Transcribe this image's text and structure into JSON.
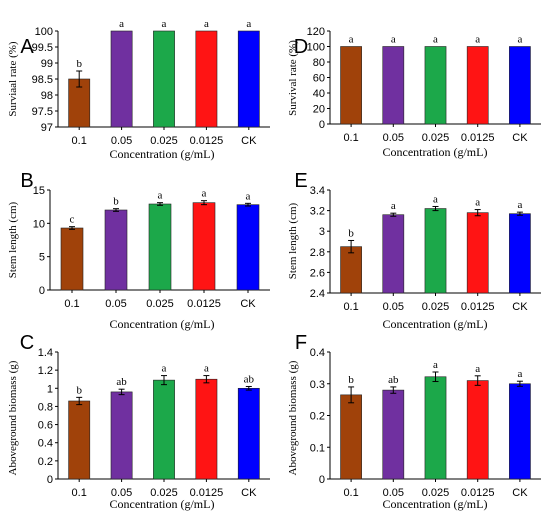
{
  "colors": [
    "#a0420a",
    "#7030a0",
    "#1ca84a",
    "#ff1414",
    "#0000ff"
  ],
  "chart_data": [
    {
      "panel": "A",
      "type": "bar",
      "categories": [
        "0.1",
        "0.05",
        "0.025",
        "0.0125",
        "CK"
      ],
      "values": [
        98.5,
        100,
        100,
        100,
        100
      ],
      "errors": [
        0.25,
        0,
        0,
        0,
        0
      ],
      "labels": [
        "b",
        "a",
        "a",
        "a",
        "a"
      ],
      "xlabel": "Concentration (g/mL)",
      "ylabel": "Surviaal rate (%)",
      "ylim": [
        97,
        100
      ],
      "yticks": [
        97,
        97.5,
        98,
        98.5,
        99,
        99.5,
        100
      ],
      "ytick_labels": [
        "97",
        "97.5",
        "98",
        "98.5",
        "99",
        "99.5",
        "100"
      ]
    },
    {
      "panel": "D",
      "type": "bar",
      "categories": [
        "0.1",
        "0.05",
        "0.025",
        "0.0125",
        "CK"
      ],
      "values": [
        100,
        100,
        100,
        100,
        100
      ],
      "errors": [
        0,
        0,
        0,
        0,
        0
      ],
      "labels": [
        "a",
        "a",
        "a",
        "a",
        "a"
      ],
      "xlabel": "Concentration (g/mL)",
      "ylabel": "Survival rate (%)",
      "ylim": [
        0,
        120
      ],
      "yticks": [
        0,
        20,
        40,
        60,
        80,
        100,
        120
      ],
      "ytick_labels": [
        "0",
        "20",
        "40",
        "60",
        "80",
        "100",
        "120"
      ]
    },
    {
      "panel": "B",
      "type": "bar",
      "categories": [
        "0.1",
        "0.05",
        "0.025",
        "0.0125",
        "CK"
      ],
      "values": [
        9.3,
        12.0,
        12.9,
        13.1,
        12.8
      ],
      "errors": [
        0.2,
        0.2,
        0.2,
        0.3,
        0.2
      ],
      "labels": [
        "c",
        "b",
        "a",
        "a",
        "a"
      ],
      "xlabel": "Concentration (g/mL)",
      "ylabel": "Stem length (cm)",
      "ylim": [
        0,
        15
      ],
      "yticks": [
        0,
        5,
        10,
        15
      ],
      "ytick_labels": [
        "0",
        "5",
        "10",
        "15"
      ]
    },
    {
      "panel": "E",
      "type": "bar",
      "categories": [
        "0.1",
        "0.05",
        "0.025",
        "0.0125",
        "CK"
      ],
      "values": [
        2.85,
        3.16,
        3.22,
        3.18,
        3.17
      ],
      "errors": [
        0.06,
        0.015,
        0.02,
        0.03,
        0.015
      ],
      "labels": [
        "b",
        "a",
        "a",
        "a",
        "a"
      ],
      "xlabel": "Concentration (g/mL)",
      "ylabel": "Stem length (cm)",
      "ylim": [
        2.4,
        3.4
      ],
      "yticks": [
        2.4,
        2.6,
        2.8,
        3,
        3.2,
        3.4
      ],
      "ytick_labels": [
        "2.4",
        "2.6",
        "2.8",
        "3",
        "3.2",
        "3.4"
      ]
    },
    {
      "panel": "C",
      "type": "bar",
      "categories": [
        "0.1",
        "0.05",
        "0.025",
        "0.0125",
        "CK"
      ],
      "values": [
        0.86,
        0.96,
        1.09,
        1.1,
        1.0
      ],
      "errors": [
        0.04,
        0.03,
        0.05,
        0.04,
        0.02
      ],
      "labels": [
        "b",
        "ab",
        "a",
        "a",
        "ab"
      ],
      "xlabel": "Concentration (g/mL)",
      "ylabel": "Aboveground biomass (g)",
      "ylim": [
        0,
        1.4
      ],
      "yticks": [
        0,
        0.2,
        0.4,
        0.6,
        0.8,
        1,
        1.2,
        1.4
      ],
      "ytick_labels": [
        "0",
        "0.2",
        "0.4",
        "0.6",
        "0.8",
        "1",
        "1.2",
        "1.4"
      ]
    },
    {
      "panel": "F",
      "type": "bar",
      "categories": [
        "0.1",
        "0.05",
        "0.025",
        "0.0125",
        "CK"
      ],
      "values": [
        0.265,
        0.28,
        0.322,
        0.31,
        0.3
      ],
      "errors": [
        0.025,
        0.01,
        0.015,
        0.015,
        0.008
      ],
      "labels": [
        "b",
        "ab",
        "a",
        "a",
        "a"
      ],
      "xlabel": "Concentration (g/mL)",
      "ylabel": "Aboveground biomass (g)",
      "ylim": [
        0,
        0.4
      ],
      "yticks": [
        0,
        0.1,
        0.2,
        0.3,
        0.4
      ],
      "ytick_labels": [
        "0",
        "0.1",
        "0.2",
        "0.3",
        "0.4"
      ]
    }
  ]
}
